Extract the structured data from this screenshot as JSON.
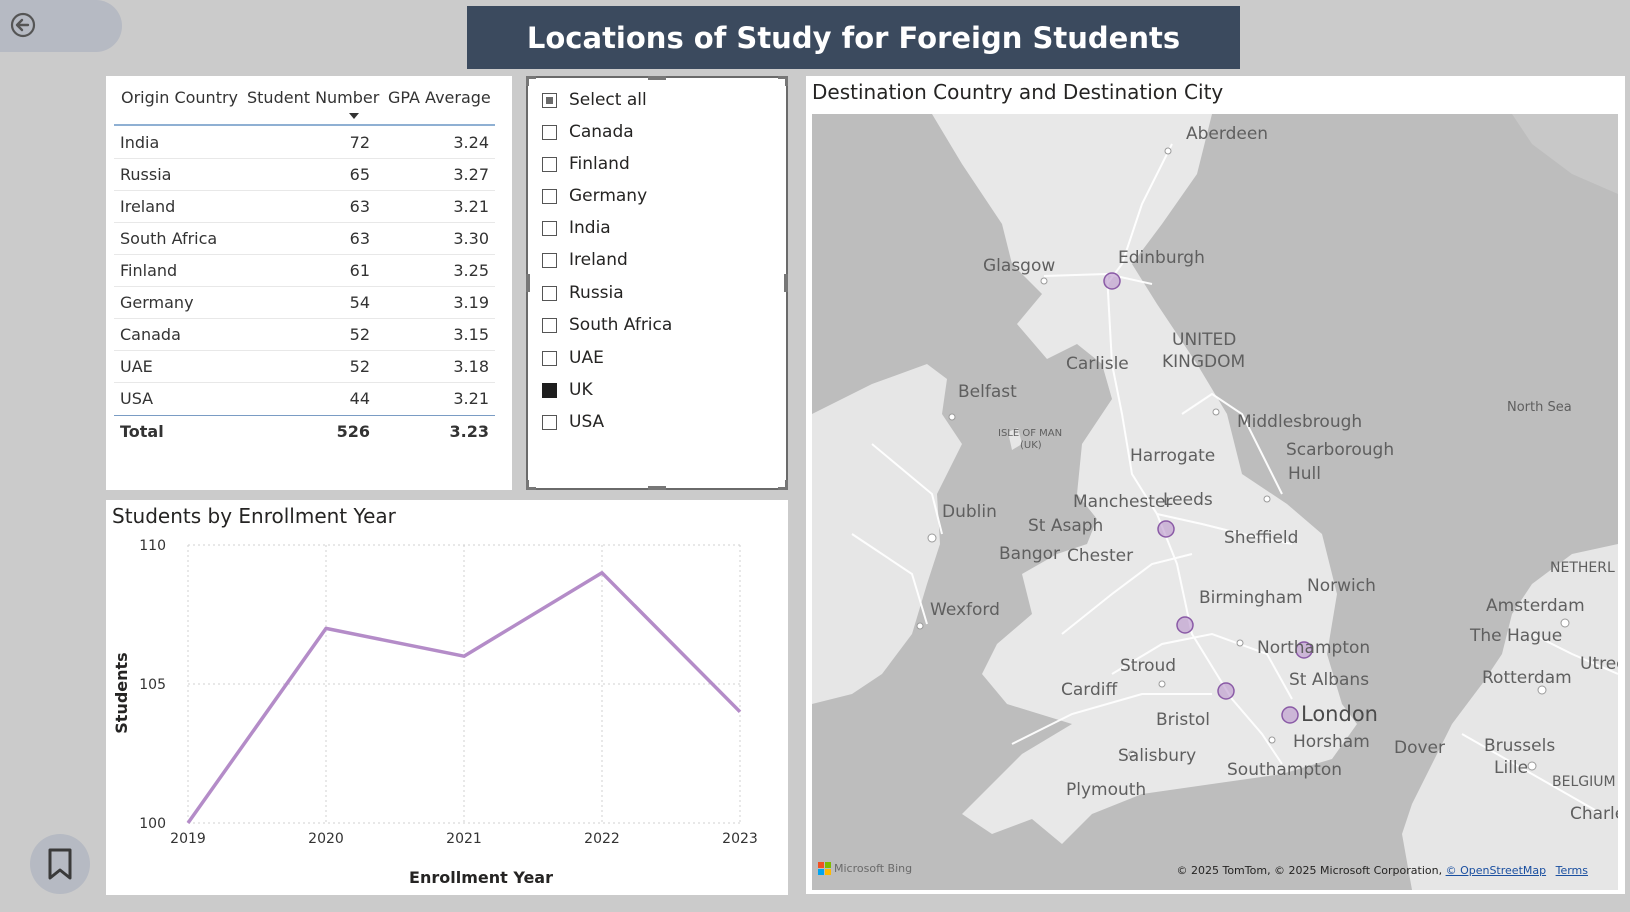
{
  "page": {
    "title": "Locations of Study for Foreign Students"
  },
  "table": {
    "headers": {
      "origin": "Origin Country",
      "students": "Student Number",
      "gpa": "GPA Average"
    },
    "rows": [
      {
        "country": "India",
        "students": "72",
        "gpa": "3.24"
      },
      {
        "country": "Russia",
        "students": "65",
        "gpa": "3.27"
      },
      {
        "country": "Ireland",
        "students": "63",
        "gpa": "3.21"
      },
      {
        "country": "South Africa",
        "students": "63",
        "gpa": "3.30"
      },
      {
        "country": "Finland",
        "students": "61",
        "gpa": "3.25"
      },
      {
        "country": "Germany",
        "students": "54",
        "gpa": "3.19"
      },
      {
        "country": "Canada",
        "students": "52",
        "gpa": "3.15"
      },
      {
        "country": "UAE",
        "students": "52",
        "gpa": "3.18"
      },
      {
        "country": "USA",
        "students": "44",
        "gpa": "3.21"
      }
    ],
    "total": {
      "label": "Total",
      "students": "526",
      "gpa": "3.23"
    }
  },
  "slicer": {
    "items": [
      {
        "label": "Select all",
        "state": "partial"
      },
      {
        "label": "Canada",
        "state": "unchecked"
      },
      {
        "label": "Finland",
        "state": "unchecked"
      },
      {
        "label": "Germany",
        "state": "unchecked"
      },
      {
        "label": "India",
        "state": "unchecked"
      },
      {
        "label": "Ireland",
        "state": "unchecked"
      },
      {
        "label": "Russia",
        "state": "unchecked"
      },
      {
        "label": "South Africa",
        "state": "unchecked"
      },
      {
        "label": "UAE",
        "state": "unchecked"
      },
      {
        "label": "UK",
        "state": "checked"
      },
      {
        "label": "USA",
        "state": "unchecked"
      }
    ]
  },
  "chart_data": {
    "type": "line",
    "title": "Students by Enrollment Year",
    "xlabel": "Enrollment Year",
    "ylabel": "Students",
    "x": [
      "2019",
      "2020",
      "2021",
      "2022",
      "2023"
    ],
    "series": [
      {
        "values": [
          100,
          107,
          106,
          109,
          104
        ]
      }
    ],
    "ylim": [
      100,
      110
    ],
    "yticks": [
      "100",
      "105",
      "110"
    ],
    "grid": true,
    "line_color": "#b48cc8"
  },
  "map": {
    "title": "Destination Country and Destination City",
    "places": [
      {
        "name": "Aberdeen"
      },
      {
        "name": "Edinburgh"
      },
      {
        "name": "Glasgow"
      },
      {
        "name": "UNITED"
      },
      {
        "name": "KINGDOM"
      },
      {
        "name": "Carlisle"
      },
      {
        "name": "Belfast"
      },
      {
        "name": "North Sea"
      },
      {
        "name": "Middlesbrough"
      },
      {
        "name": "Scarborough"
      },
      {
        "name": "Hull"
      },
      {
        "name": "ISLE OF MAN"
      },
      {
        "name": "(UK)"
      },
      {
        "name": "Harrogate"
      },
      {
        "name": "Manchester"
      },
      {
        "name": "Leeds"
      },
      {
        "name": "Dublin"
      },
      {
        "name": "St Asaph"
      },
      {
        "name": "Sheffield"
      },
      {
        "name": "Bangor"
      },
      {
        "name": "Chester"
      },
      {
        "name": "Birmingham"
      },
      {
        "name": "Norwich"
      },
      {
        "name": "Wexford"
      },
      {
        "name": "NETHERL"
      },
      {
        "name": "Amsterdam"
      },
      {
        "name": "Northampton"
      },
      {
        "name": "The Hague"
      },
      {
        "name": "Utrec"
      },
      {
        "name": "Stroud"
      },
      {
        "name": "Cardiff"
      },
      {
        "name": "St Albans"
      },
      {
        "name": "Rotterdam"
      },
      {
        "name": "Bristol"
      },
      {
        "name": "London"
      },
      {
        "name": "Horsham"
      },
      {
        "name": "Dover"
      },
      {
        "name": "Brussels"
      },
      {
        "name": "Lille"
      },
      {
        "name": "Salisbury"
      },
      {
        "name": "Southampton"
      },
      {
        "name": "BELGIUM"
      },
      {
        "name": "Plymouth"
      },
      {
        "name": "Charle"
      }
    ],
    "marker_color": "#b48cc8",
    "brand": "Microsoft Bing",
    "attribution": "© 2025 TomTom, © 2025 Microsoft Corporation,",
    "osm_link": "© OpenStreetMap",
    "terms_link": "Terms"
  }
}
